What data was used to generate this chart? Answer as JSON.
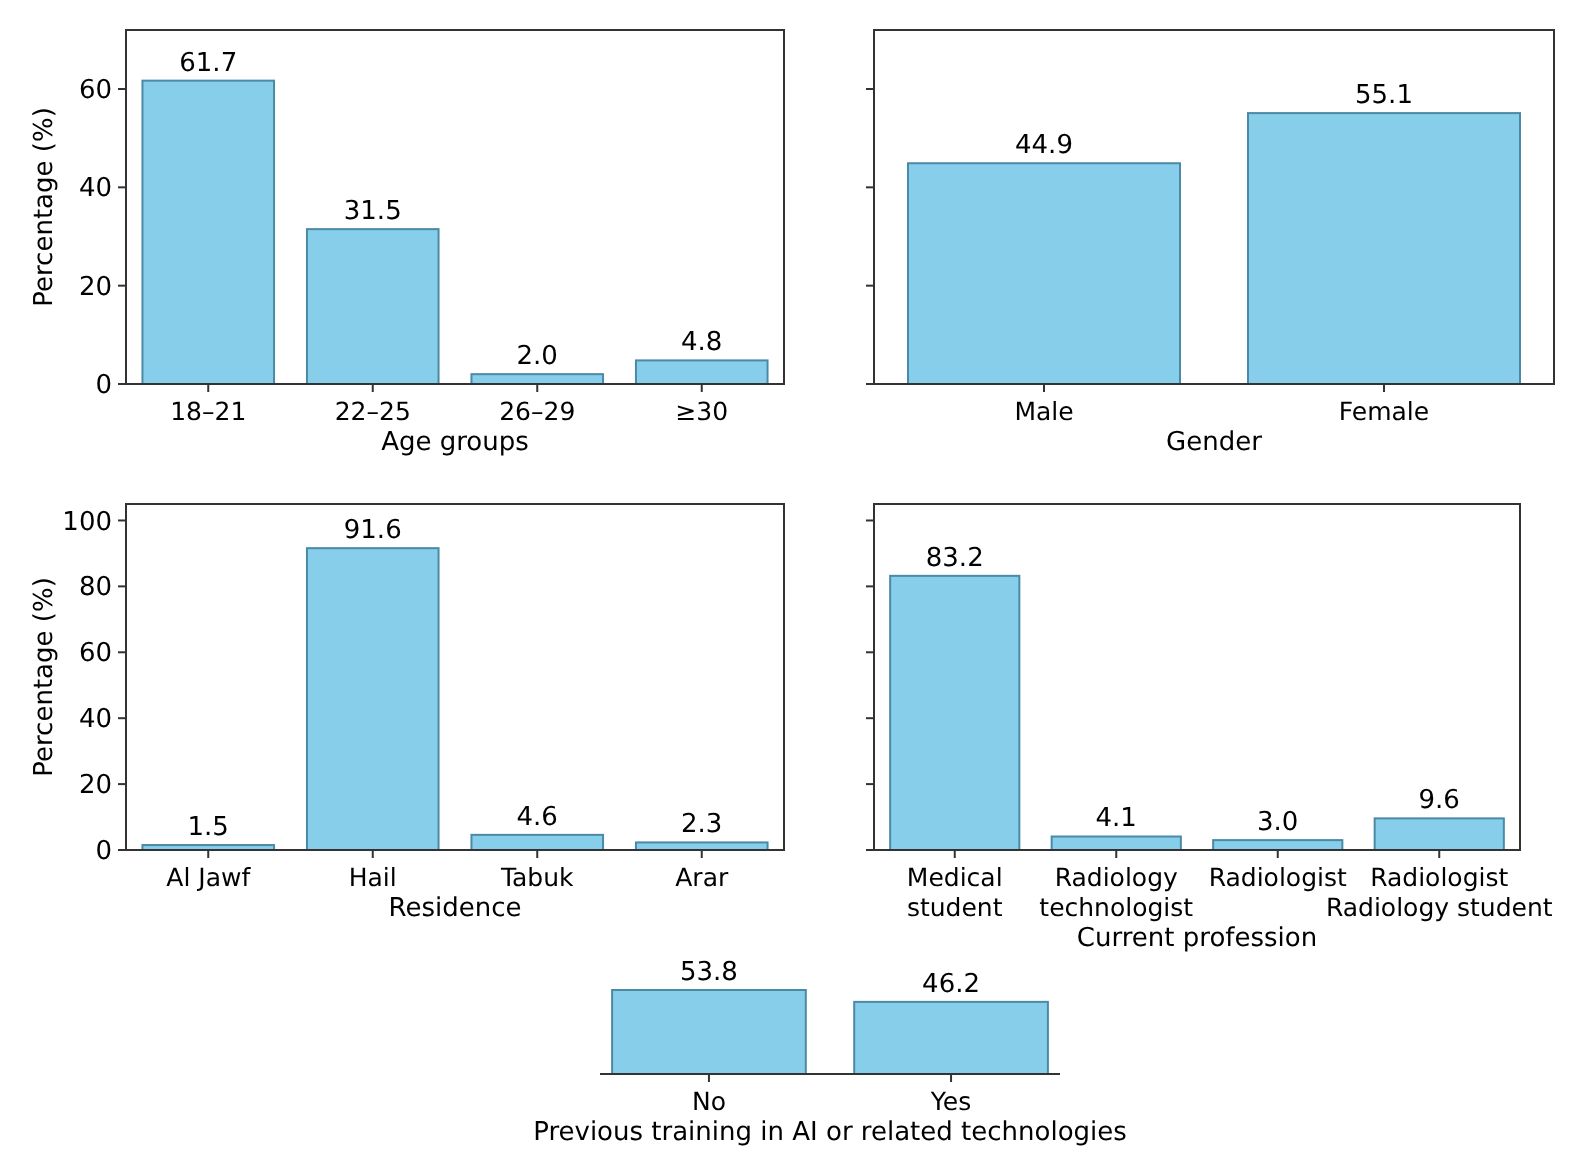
{
  "chart_data": [
    {
      "type": "bar",
      "xlabel": "Age groups",
      "ylabel": "Percentage (%)",
      "categories": [
        "18–21",
        "22–25",
        "26–29",
        "≥30"
      ],
      "values": [
        61.7,
        31.5,
        2.0,
        4.8
      ],
      "value_labels": [
        "61.7",
        "31.5",
        "2.0",
        "4.8"
      ],
      "color": "#87ceeb",
      "ylim": [
        0,
        72
      ],
      "yticks": [
        0,
        20,
        40,
        60
      ]
    },
    {
      "type": "bar",
      "xlabel": "Gender",
      "categories": [
        "Male",
        "Female"
      ],
      "values": [
        44.9,
        55.1
      ],
      "color": "#87ceeb",
      "ylim": [
        0,
        72
      ],
      "yticks": [
        0,
        20,
        40,
        60
      ],
      "data_labels": true,
      "tick_labels": "x"
    },
    {
      "type": "bar",
      "xlabel": "Residence",
      "ylabel": "Percentage (%)",
      "categories": [
        "Al Jawf",
        "Hail",
        "Tabuk",
        "Arar"
      ],
      "values": [
        1.5,
        91.6,
        4.6,
        2.3
      ],
      "color": "#87ceeb",
      "ylim": [
        0,
        105
      ],
      "yticks": [
        0,
        20,
        40,
        60,
        80,
        100
      ],
      "data_labels": true
    },
    {
      "type": "bar",
      "xlabel": "Current profession",
      "categories": [
        "Medical\nstudent",
        "Radiology\ntechnologist",
        "Radiologist",
        "Radiologist\nRadiology student"
      ],
      "values": [
        83.2,
        4.1,
        3.0,
        9.6
      ],
      "value_labels": [
        "83.2",
        "4.1",
        "3.0",
        "9.6"
      ],
      "color": "#87ceeb",
      "ylim": [
        0,
        105
      ],
      "yticks": [
        0,
        20,
        40,
        60,
        80,
        100
      ],
      "tick_labels": "x"
    },
    {
      "type": "bar",
      "xlabel": "Previous training in AI or related technologies",
      "categories": [
        "No",
        "Yes"
      ],
      "values": [
        53.8,
        46.2
      ],
      "color": "#87ceeb",
      "data_labels": true,
      "tick_labels": "x"
    }
  ]
}
